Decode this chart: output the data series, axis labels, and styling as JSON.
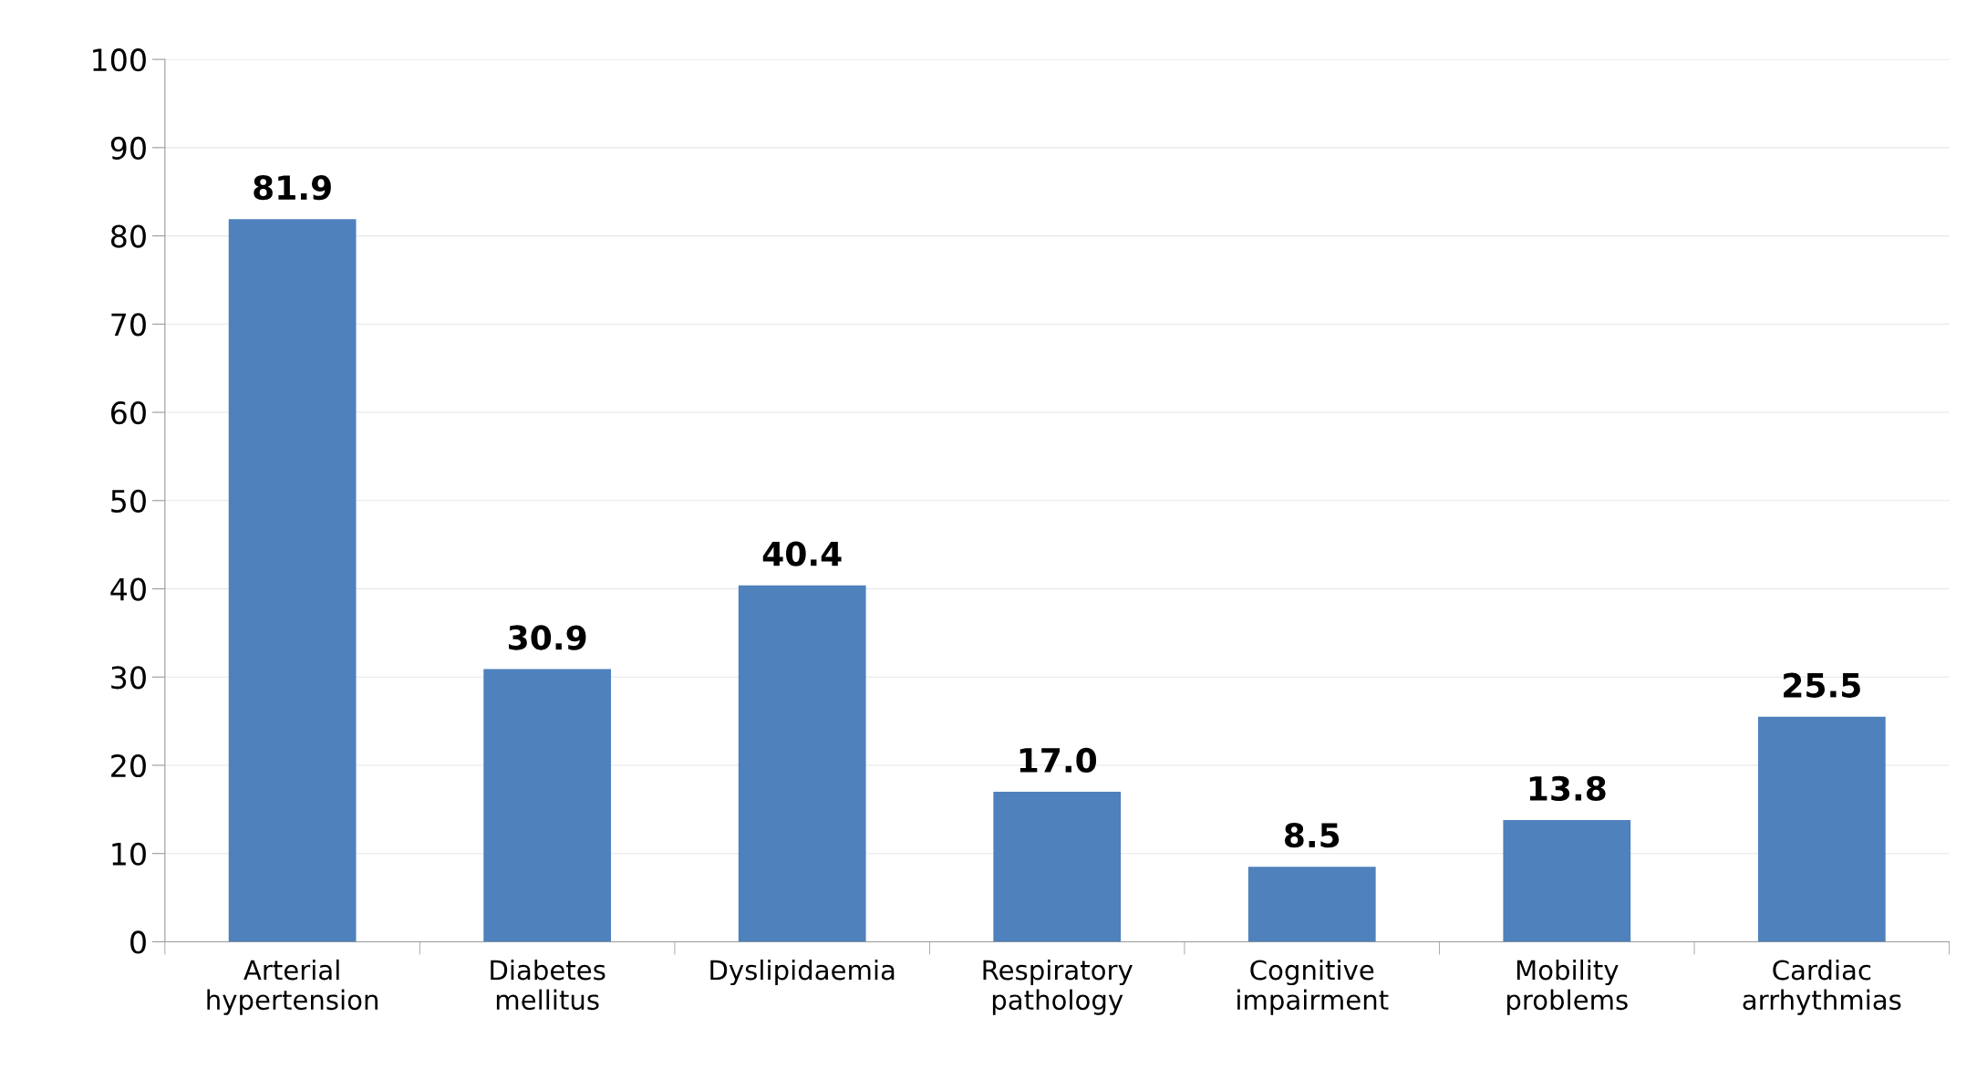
{
  "chart_data": {
    "type": "bar",
    "categories": [
      "Arterial\nhypertension",
      "Diabetes\nmellitus",
      "Dyslipidaemia",
      "Respiratory\npathology",
      "Cognitive\nimpairment",
      "Mobility\nproblems",
      "Cardiac\narrhythmias"
    ],
    "values": [
      81.9,
      30.9,
      40.4,
      17.0,
      8.5,
      13.8,
      25.5
    ],
    "value_labels": [
      "81.9",
      "30.9",
      "40.4",
      "17.0",
      "8.5",
      "13.8",
      "25.5"
    ],
    "color": "#4f81bd",
    "ylim": [
      0,
      100
    ],
    "yticks": [
      0,
      10,
      20,
      30,
      40,
      50,
      60,
      70,
      80,
      90,
      100
    ],
    "grid": "y",
    "legend": false
  }
}
